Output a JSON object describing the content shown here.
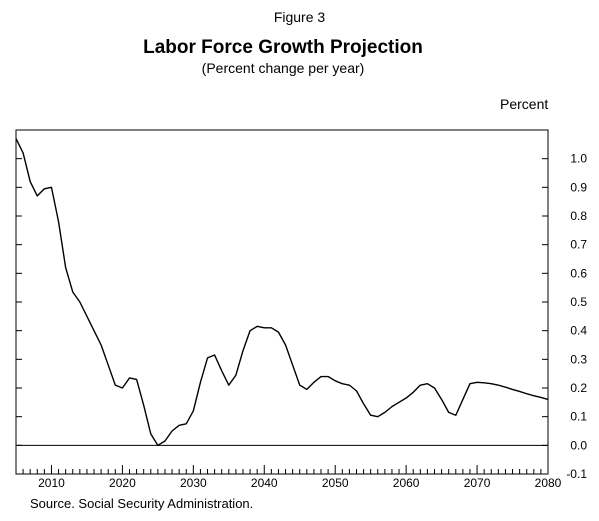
{
  "header": {
    "figure_label": "Figure 3",
    "title": "Labor Force Growth Projection",
    "subtitle": "(Percent change per year)"
  },
  "y_unit": "Percent",
  "source": "Source.  Social Security Administration.",
  "chart_data": {
    "type": "line",
    "title": "Labor Force Growth Projection",
    "subtitle": "(Percent change per year)",
    "xlabel": "",
    "ylabel": "Percent",
    "xlim": [
      2005,
      2080
    ],
    "ylim": [
      -0.1,
      1.1
    ],
    "x_ticks": [
      2010,
      2020,
      2030,
      2040,
      2050,
      2060,
      2070,
      2080
    ],
    "y_ticks": [
      1.0,
      0.9,
      0.8,
      0.7,
      0.6,
      0.5,
      0.4,
      0.3,
      0.2,
      0.1,
      0.0,
      -0.1
    ],
    "y_tick_labels": [
      "1.0",
      "0.9",
      "0.8",
      "0.7",
      "0.6",
      "0.5",
      "0.4",
      "0.3",
      "0.2",
      "0.1",
      "0.0",
      "-0.1"
    ],
    "zero_line": true,
    "grid": false,
    "line_color": "#000000",
    "series": [
      {
        "x": [
          2005,
          2006,
          2007,
          2008,
          2009,
          2010,
          2011,
          2012,
          2013,
          2014,
          2015,
          2016,
          2017,
          2018,
          2019,
          2020,
          2021,
          2022,
          2023,
          2024,
          2025,
          2026,
          2027,
          2028,
          2029,
          2030,
          2031,
          2032,
          2033,
          2034,
          2035,
          2036,
          2037,
          2038,
          2039,
          2040,
          2041,
          2042,
          2043,
          2044,
          2045,
          2046,
          2047,
          2048,
          2049,
          2050,
          2051,
          2052,
          2053,
          2054,
          2055,
          2056,
          2057,
          2058,
          2059,
          2060,
          2061,
          2062,
          2063,
          2064,
          2065,
          2066,
          2067,
          2068,
          2069,
          2070,
          2071,
          2072,
          2073,
          2074,
          2075,
          2076,
          2077,
          2078,
          2079,
          2080
        ],
        "values": [
          1.07,
          1.02,
          0.92,
          0.87,
          0.895,
          0.9,
          0.78,
          0.62,
          0.535,
          0.5,
          0.45,
          0.4,
          0.35,
          0.28,
          0.21,
          0.2,
          0.235,
          0.23,
          0.14,
          0.04,
          0.0,
          0.015,
          0.05,
          0.07,
          0.075,
          0.12,
          0.22,
          0.305,
          0.315,
          0.26,
          0.21,
          0.245,
          0.33,
          0.4,
          0.415,
          0.41,
          0.41,
          0.395,
          0.35,
          0.28,
          0.21,
          0.195,
          0.22,
          0.24,
          0.24,
          0.225,
          0.215,
          0.21,
          0.19,
          0.145,
          0.105,
          0.1,
          0.115,
          0.135,
          0.15,
          0.165,
          0.185,
          0.21,
          0.215,
          0.2,
          0.16,
          0.115,
          0.105,
          0.16,
          0.215,
          0.22,
          0.218,
          0.215,
          0.21,
          0.203,
          0.195,
          0.188,
          0.18,
          0.173,
          0.167,
          0.16
        ]
      }
    ]
  }
}
